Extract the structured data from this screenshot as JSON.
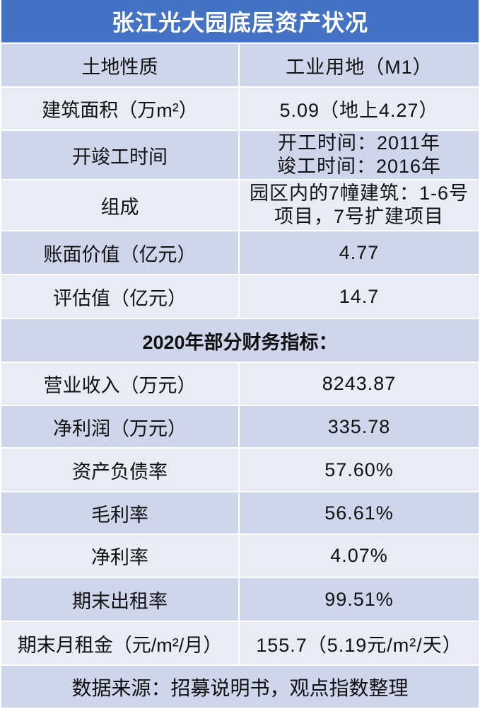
{
  "title": "张江光大园底层资产状况",
  "basic_info": [
    {
      "label": "土地性质",
      "value": "工业用地（M1）"
    },
    {
      "label": "建筑面积（万m²）",
      "value": "5.09（地上4.27）"
    },
    {
      "label": "开竣工时间",
      "value_lines": [
        "开工时间：2011年",
        "竣工时间：2016年"
      ]
    },
    {
      "label": "组成",
      "value_lines": [
        "园区内的7幢建筑：1-6号",
        "项目，7号扩建项目"
      ]
    },
    {
      "label": "账面价值（亿元）",
      "value": "4.77"
    },
    {
      "label": "评估值（亿元）",
      "value": "14.7"
    }
  ],
  "financials_header": "2020年部分财务指标：",
  "financials": [
    {
      "label": "营业收入（万元）",
      "value": "8243.87"
    },
    {
      "label": "净利润（万元）",
      "value": "335.78"
    },
    {
      "label": "资产负债率",
      "value": "57.60%"
    },
    {
      "label": "毛利率",
      "value": "56.61%"
    },
    {
      "label": "净利率",
      "value": "4.07%"
    },
    {
      "label": "期末出租率",
      "value": "99.51%"
    },
    {
      "label": "期末月租金（元/m²/月）",
      "value": "155.7（5.19元/m²/天）"
    }
  ],
  "source_note": "数据来源：招募说明书，观点指数整理",
  "colors": {
    "header_bg": "#4472C4",
    "header_text": "#FFFFFF",
    "row_dark": "#CFD5EA",
    "row_light": "#E9EBF5"
  }
}
